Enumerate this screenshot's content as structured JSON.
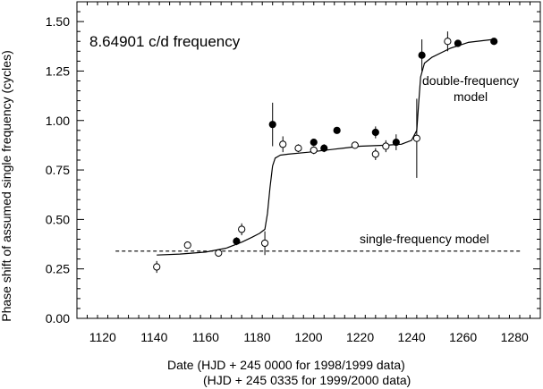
{
  "chart_data": {
    "type": "scatter",
    "title": "8.64901 c/d frequency",
    "ylabel": "Phase shift of assumed single frequency (cycles)",
    "xlabel_line1": "Date (HJD + 245 0000 for 1998/1999 data)",
    "xlabel_line2": "(HJD + 245 0335 for 1999/2000 data)",
    "xlim": [
      1110,
      1290
    ],
    "ylim": [
      0,
      1.6
    ],
    "x_ticks": [
      1120,
      1140,
      1160,
      1180,
      1200,
      1220,
      1240,
      1260,
      1280
    ],
    "y_ticks": [
      0.0,
      0.25,
      0.5,
      0.75,
      1.0,
      1.25,
      1.5
    ],
    "y_tick_labels": [
      "0.00",
      "0.25",
      "0.50",
      "0.75",
      "1.00",
      "1.25",
      "1.50"
    ],
    "grid": false,
    "series": [
      {
        "marker": "open-circle",
        "points": [
          {
            "x": 1141,
            "y": 0.26,
            "err": 0.03
          },
          {
            "x": 1153,
            "y": 0.37,
            "err": 0
          },
          {
            "x": 1165,
            "y": 0.33,
            "err": 0
          },
          {
            "x": 1174,
            "y": 0.45,
            "err": 0.03
          },
          {
            "x": 1183,
            "y": 0.38,
            "err": 0.06
          },
          {
            "x": 1190,
            "y": 0.88,
            "err": 0.04
          },
          {
            "x": 1196,
            "y": 0.86,
            "err": 0.02
          },
          {
            "x": 1202,
            "y": 0.85,
            "err": 0.02
          },
          {
            "x": 1218,
            "y": 0.875,
            "err": 0
          },
          {
            "x": 1226,
            "y": 0.83,
            "err": 0.03
          },
          {
            "x": 1230,
            "y": 0.87,
            "err": 0.03
          },
          {
            "x": 1242,
            "y": 0.91,
            "err": 0.2
          },
          {
            "x": 1254,
            "y": 1.4,
            "err": 0.05
          }
        ]
      },
      {
        "marker": "filled-circle",
        "points": [
          {
            "x": 1172,
            "y": 0.39,
            "err": 0.02
          },
          {
            "x": 1186,
            "y": 0.98,
            "err": 0.11
          },
          {
            "x": 1202,
            "y": 0.89,
            "err": 0
          },
          {
            "x": 1206,
            "y": 0.86,
            "err": 0.02
          },
          {
            "x": 1211,
            "y": 0.95,
            "err": 0
          },
          {
            "x": 1226,
            "y": 0.94,
            "err": 0.03
          },
          {
            "x": 1234,
            "y": 0.89,
            "err": 0.04
          },
          {
            "x": 1244,
            "y": 1.33,
            "err": 0.08
          },
          {
            "x": 1258,
            "y": 1.39,
            "err": 0
          },
          {
            "x": 1272,
            "y": 1.4,
            "err": 0
          }
        ]
      }
    ],
    "models": [
      {
        "label": "double-frequency model",
        "label_lines": [
          "double-frequency",
          "model"
        ],
        "style": "solid",
        "points": [
          [
            1141,
            0.32
          ],
          [
            1150,
            0.325
          ],
          [
            1160,
            0.335
          ],
          [
            1168,
            0.355
          ],
          [
            1174,
            0.385
          ],
          [
            1178,
            0.41
          ],
          [
            1181,
            0.43
          ],
          [
            1183,
            0.45
          ],
          [
            1184,
            0.53
          ],
          [
            1185,
            0.66
          ],
          [
            1186,
            0.77
          ],
          [
            1187,
            0.81
          ],
          [
            1189,
            0.825
          ],
          [
            1192,
            0.83
          ],
          [
            1200,
            0.84
          ],
          [
            1210,
            0.855
          ],
          [
            1220,
            0.87
          ],
          [
            1230,
            0.875
          ],
          [
            1236,
            0.88
          ],
          [
            1240,
            0.9
          ],
          [
            1242,
            0.95
          ],
          [
            1242.7,
            1.08
          ],
          [
            1243.5,
            1.22
          ],
          [
            1245,
            1.29
          ],
          [
            1248,
            1.32
          ],
          [
            1255,
            1.365
          ],
          [
            1262,
            1.395
          ],
          [
            1272,
            1.41
          ]
        ]
      },
      {
        "label": "single-frequency model",
        "style": "dashed",
        "points": [
          [
            1125,
            0.34
          ],
          [
            1283,
            0.34
          ]
        ]
      }
    ]
  }
}
